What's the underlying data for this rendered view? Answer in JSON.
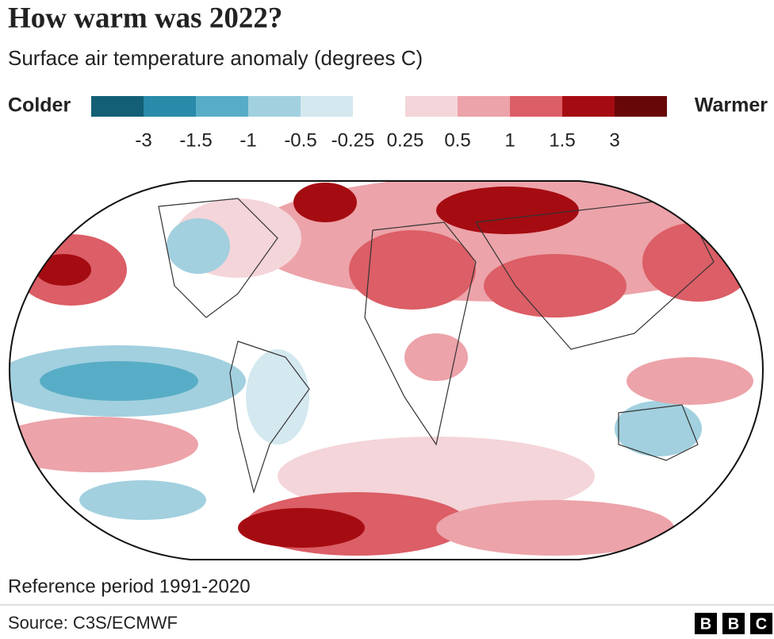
{
  "header": {
    "title": "How warm was 2022?",
    "subtitle": "Surface air temperature anomaly (degrees C)"
  },
  "legend": {
    "low_label": "Colder",
    "high_label": "Warmer",
    "colors": [
      "#135f75",
      "#2a8aa9",
      "#58adc6",
      "#a2d0df",
      "#d4e8ef",
      "#f4d5d9",
      "#eca3a9",
      "#dc5e66",
      "#a50c12",
      "#680708"
    ],
    "ticks": [
      -3,
      -1.5,
      -1,
      -0.5,
      -0.25,
      0.25,
      0.5,
      1,
      1.5,
      3
    ]
  },
  "footer": {
    "reference": "Reference period 1991-2020",
    "source": "Source: C3S/ECMWF",
    "logo": [
      "B",
      "B",
      "C"
    ]
  }
}
